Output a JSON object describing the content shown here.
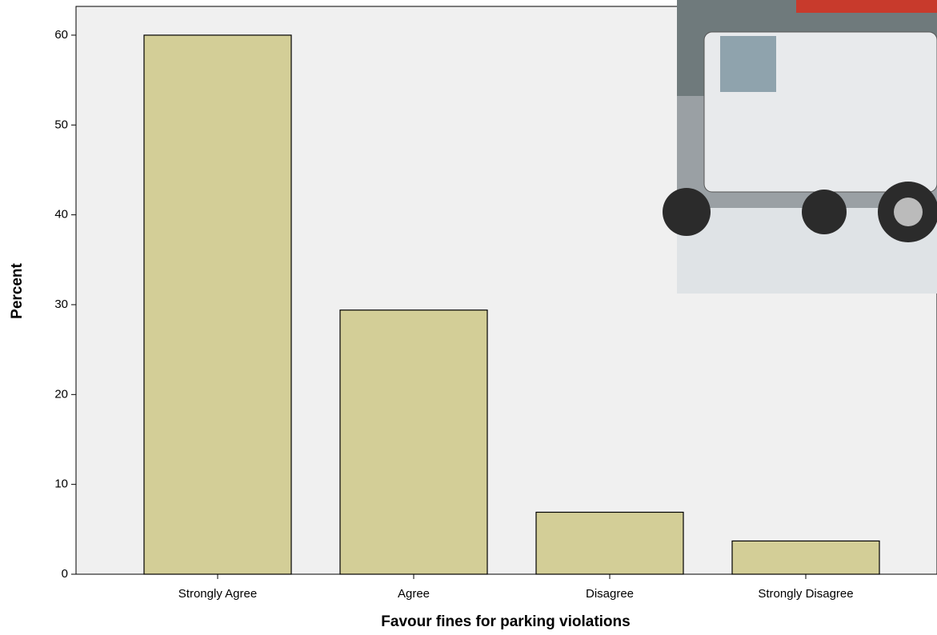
{
  "chart_data": {
    "type": "bar",
    "x_label": "Favour fines for parking violations",
    "y_label": "Percent",
    "categories": [
      "Strongly Agree",
      "Agree",
      "Disagree",
      "Strongly Disagree"
    ],
    "values": [
      60,
      29.4,
      6.9,
      3.7
    ],
    "color": "#d3ce97",
    "ylim": [
      0,
      63.2
    ],
    "yticks": [
      0,
      10,
      20,
      30,
      40,
      50,
      60
    ]
  }
}
